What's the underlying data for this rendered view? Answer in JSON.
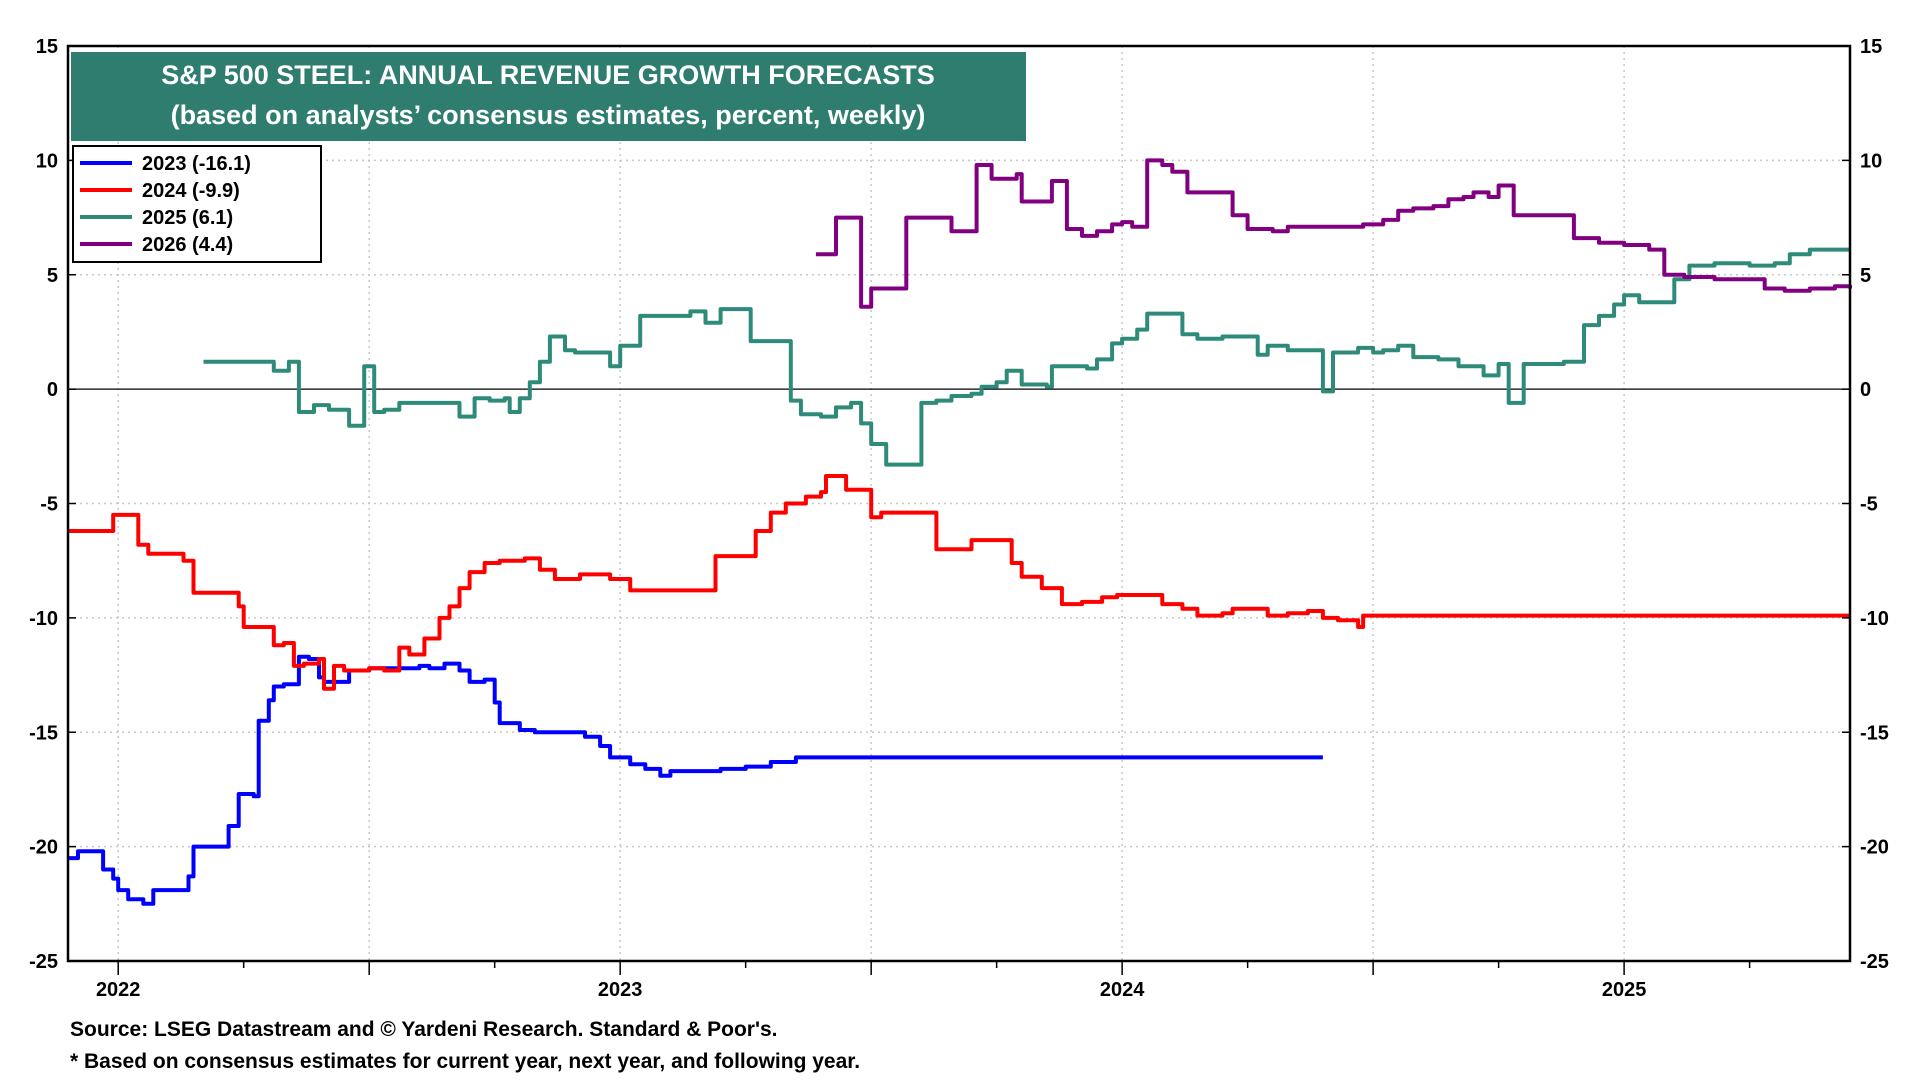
{
  "chart_data": {
    "type": "line",
    "title": "S&P 500 STEEL: ANNUAL REVENUE GROWTH FORECASTS",
    "subtitle": "(based on analysts’ consensus estimates, percent, weekly)",
    "xlabel": "",
    "ylabel": "",
    "ylim": [
      -25,
      15
    ],
    "xlim": [
      2021.9,
      2025.45
    ],
    "y_ticks": [
      15,
      10,
      5,
      0,
      -5,
      -10,
      -15,
      -20,
      -25
    ],
    "x_tick_labels": [
      {
        "label": "2022",
        "x": 2022.0
      },
      {
        "label": "2023",
        "x": 2023.0
      },
      {
        "label": "2024",
        "x": 2024.0
      },
      {
        "label": "2025",
        "x": 2025.0
      }
    ],
    "grid": true,
    "legend_position": "top-left",
    "series": [
      {
        "name": "2023 (-16.1)",
        "color": "#0000ff",
        "points": [
          [
            2021.9,
            -20.5
          ],
          [
            2021.92,
            -20.2
          ],
          [
            2021.96,
            -20.2
          ],
          [
            2021.97,
            -21.0
          ],
          [
            2021.99,
            -21.4
          ],
          [
            2022.0,
            -21.9
          ],
          [
            2022.02,
            -22.3
          ],
          [
            2022.05,
            -22.5
          ],
          [
            2022.07,
            -21.9
          ],
          [
            2022.12,
            -21.9
          ],
          [
            2022.14,
            -21.3
          ],
          [
            2022.15,
            -20.0
          ],
          [
            2022.2,
            -20.0
          ],
          [
            2022.22,
            -19.1
          ],
          [
            2022.24,
            -17.7
          ],
          [
            2022.27,
            -17.8
          ],
          [
            2022.28,
            -14.5
          ],
          [
            2022.3,
            -13.6
          ],
          [
            2022.31,
            -13.0
          ],
          [
            2022.33,
            -12.9
          ],
          [
            2022.35,
            -12.9
          ],
          [
            2022.36,
            -11.7
          ],
          [
            2022.38,
            -11.8
          ],
          [
            2022.4,
            -12.6
          ],
          [
            2022.41,
            -12.8
          ],
          [
            2022.45,
            -12.8
          ],
          [
            2022.46,
            -12.3
          ],
          [
            2022.5,
            -12.2
          ],
          [
            2022.6,
            -12.1
          ],
          [
            2022.62,
            -12.2
          ],
          [
            2022.65,
            -12.0
          ],
          [
            2022.68,
            -12.3
          ],
          [
            2022.7,
            -12.8
          ],
          [
            2022.73,
            -12.7
          ],
          [
            2022.75,
            -13.7
          ],
          [
            2022.76,
            -14.6
          ],
          [
            2022.8,
            -14.9
          ],
          [
            2022.83,
            -15.0
          ],
          [
            2022.93,
            -15.2
          ],
          [
            2022.96,
            -15.6
          ],
          [
            2022.98,
            -16.1
          ],
          [
            2023.02,
            -16.4
          ],
          [
            2023.05,
            -16.6
          ],
          [
            2023.08,
            -16.9
          ],
          [
            2023.1,
            -16.7
          ],
          [
            2023.17,
            -16.7
          ],
          [
            2023.2,
            -16.6
          ],
          [
            2023.25,
            -16.5
          ],
          [
            2023.3,
            -16.3
          ],
          [
            2023.35,
            -16.1
          ],
          [
            2024.4,
            -16.1
          ]
        ]
      },
      {
        "name": "2024 (-9.9)",
        "color": "#ff0000",
        "points": [
          [
            2021.9,
            -6.2
          ],
          [
            2021.97,
            -6.2
          ],
          [
            2021.99,
            -5.5
          ],
          [
            2022.03,
            -5.5
          ],
          [
            2022.04,
            -6.8
          ],
          [
            2022.06,
            -7.2
          ],
          [
            2022.11,
            -7.2
          ],
          [
            2022.13,
            -7.5
          ],
          [
            2022.15,
            -8.9
          ],
          [
            2022.22,
            -8.9
          ],
          [
            2022.24,
            -9.5
          ],
          [
            2022.25,
            -10.4
          ],
          [
            2022.3,
            -10.4
          ],
          [
            2022.31,
            -11.2
          ],
          [
            2022.33,
            -11.1
          ],
          [
            2022.35,
            -12.1
          ],
          [
            2022.37,
            -12.0
          ],
          [
            2022.4,
            -11.8
          ],
          [
            2022.41,
            -13.1
          ],
          [
            2022.43,
            -12.1
          ],
          [
            2022.45,
            -12.3
          ],
          [
            2022.5,
            -12.2
          ],
          [
            2022.53,
            -12.3
          ],
          [
            2022.56,
            -11.3
          ],
          [
            2022.58,
            -11.6
          ],
          [
            2022.61,
            -10.9
          ],
          [
            2022.64,
            -10.0
          ],
          [
            2022.66,
            -9.5
          ],
          [
            2022.68,
            -8.7
          ],
          [
            2022.7,
            -8.0
          ],
          [
            2022.73,
            -7.6
          ],
          [
            2022.76,
            -7.5
          ],
          [
            2022.81,
            -7.4
          ],
          [
            2022.84,
            -7.9
          ],
          [
            2022.87,
            -8.3
          ],
          [
            2022.92,
            -8.1
          ],
          [
            2022.95,
            -8.1
          ],
          [
            2022.98,
            -8.3
          ],
          [
            2023.02,
            -8.8
          ],
          [
            2023.07,
            -8.8
          ],
          [
            2023.17,
            -8.8
          ],
          [
            2023.19,
            -7.3
          ],
          [
            2023.25,
            -7.3
          ],
          [
            2023.27,
            -6.2
          ],
          [
            2023.3,
            -5.4
          ],
          [
            2023.33,
            -5.0
          ],
          [
            2023.37,
            -4.7
          ],
          [
            2023.4,
            -4.5
          ],
          [
            2023.41,
            -3.8
          ],
          [
            2023.45,
            -4.4
          ],
          [
            2023.48,
            -4.4
          ],
          [
            2023.5,
            -5.6
          ],
          [
            2023.52,
            -5.4
          ],
          [
            2023.61,
            -5.4
          ],
          [
            2023.63,
            -7.0
          ],
          [
            2023.68,
            -7.0
          ],
          [
            2023.7,
            -6.6
          ],
          [
            2023.76,
            -6.6
          ],
          [
            2023.78,
            -7.6
          ],
          [
            2023.8,
            -8.2
          ],
          [
            2023.84,
            -8.7
          ],
          [
            2023.88,
            -9.4
          ],
          [
            2023.92,
            -9.3
          ],
          [
            2023.96,
            -9.1
          ],
          [
            2023.99,
            -9.0
          ],
          [
            2024.05,
            -9.0
          ],
          [
            2024.08,
            -9.4
          ],
          [
            2024.12,
            -9.6
          ],
          [
            2024.15,
            -9.9
          ],
          [
            2024.2,
            -9.8
          ],
          [
            2024.22,
            -9.6
          ],
          [
            2024.27,
            -9.6
          ],
          [
            2024.29,
            -9.9
          ],
          [
            2024.33,
            -9.8
          ],
          [
            2024.37,
            -9.7
          ],
          [
            2024.4,
            -10.0
          ],
          [
            2024.43,
            -10.1
          ],
          [
            2024.47,
            -10.4
          ],
          [
            2024.48,
            -9.9
          ],
          [
            2025.45,
            -9.9
          ]
        ]
      },
      {
        "name": "2025 (6.1)",
        "color": "#2e8b7a",
        "points": [
          [
            2022.17,
            1.2
          ],
          [
            2022.3,
            1.2
          ],
          [
            2022.31,
            0.8
          ],
          [
            2022.34,
            1.2
          ],
          [
            2022.36,
            -1.0
          ],
          [
            2022.39,
            -0.7
          ],
          [
            2022.42,
            -0.9
          ],
          [
            2022.46,
            -1.6
          ],
          [
            2022.49,
            1.0
          ],
          [
            2022.51,
            -1.0
          ],
          [
            2022.53,
            -0.9
          ],
          [
            2022.56,
            -0.6
          ],
          [
            2022.6,
            -0.6
          ],
          [
            2022.66,
            -0.6
          ],
          [
            2022.68,
            -1.2
          ],
          [
            2022.71,
            -0.4
          ],
          [
            2022.74,
            -0.5
          ],
          [
            2022.77,
            -0.4
          ],
          [
            2022.78,
            -1.0
          ],
          [
            2022.8,
            -0.4
          ],
          [
            2022.82,
            0.3
          ],
          [
            2022.84,
            1.2
          ],
          [
            2022.86,
            2.3
          ],
          [
            2022.89,
            1.7
          ],
          [
            2022.91,
            1.6
          ],
          [
            2022.96,
            1.6
          ],
          [
            2022.98,
            1.0
          ],
          [
            2023.0,
            1.9
          ],
          [
            2023.04,
            3.2
          ],
          [
            2023.1,
            3.2
          ],
          [
            2023.14,
            3.4
          ],
          [
            2023.17,
            2.9
          ],
          [
            2023.2,
            3.5
          ],
          [
            2023.24,
            3.5
          ],
          [
            2023.26,
            2.1
          ],
          [
            2023.32,
            2.1
          ],
          [
            2023.34,
            -0.5
          ],
          [
            2023.36,
            -1.1
          ],
          [
            2023.4,
            -1.2
          ],
          [
            2023.43,
            -0.8
          ],
          [
            2023.46,
            -0.6
          ],
          [
            2023.48,
            -1.5
          ],
          [
            2023.5,
            -2.4
          ],
          [
            2023.53,
            -3.3
          ],
          [
            2023.58,
            -3.3
          ],
          [
            2023.6,
            -0.6
          ],
          [
            2023.63,
            -0.5
          ],
          [
            2023.66,
            -0.3
          ],
          [
            2023.7,
            -0.2
          ],
          [
            2023.72,
            0.1
          ],
          [
            2023.75,
            0.3
          ],
          [
            2023.77,
            0.8
          ],
          [
            2023.8,
            0.2
          ],
          [
            2023.85,
            0.1
          ],
          [
            2023.86,
            1.0
          ],
          [
            2023.9,
            1.0
          ],
          [
            2023.93,
            0.9
          ],
          [
            2023.95,
            1.3
          ],
          [
            2023.98,
            2.0
          ],
          [
            2024.0,
            2.2
          ],
          [
            2024.03,
            2.6
          ],
          [
            2024.05,
            3.3
          ],
          [
            2024.09,
            3.3
          ],
          [
            2024.12,
            2.4
          ],
          [
            2024.15,
            2.2
          ],
          [
            2024.2,
            2.3
          ],
          [
            2024.25,
            2.3
          ],
          [
            2024.27,
            1.5
          ],
          [
            2024.29,
            1.9
          ],
          [
            2024.33,
            1.7
          ],
          [
            2024.38,
            1.7
          ],
          [
            2024.4,
            -0.1
          ],
          [
            2024.42,
            1.6
          ],
          [
            2024.45,
            1.6
          ],
          [
            2024.47,
            1.8
          ],
          [
            2024.5,
            1.6
          ],
          [
            2024.52,
            1.7
          ],
          [
            2024.55,
            1.9
          ],
          [
            2024.58,
            1.4
          ],
          [
            2024.63,
            1.3
          ],
          [
            2024.67,
            1.0
          ],
          [
            2024.7,
            1.0
          ],
          [
            2024.72,
            0.6
          ],
          [
            2024.75,
            1.1
          ],
          [
            2024.77,
            -0.6
          ],
          [
            2024.8,
            1.1
          ],
          [
            2024.85,
            1.1
          ],
          [
            2024.88,
            1.2
          ],
          [
            2024.92,
            2.8
          ],
          [
            2024.95,
            3.2
          ],
          [
            2024.98,
            3.7
          ],
          [
            2025.0,
            4.1
          ],
          [
            2025.03,
            3.8
          ],
          [
            2025.08,
            3.8
          ],
          [
            2025.1,
            4.8
          ],
          [
            2025.13,
            5.4
          ],
          [
            2025.18,
            5.5
          ],
          [
            2025.22,
            5.5
          ],
          [
            2025.25,
            5.4
          ],
          [
            2025.3,
            5.5
          ],
          [
            2025.33,
            5.9
          ],
          [
            2025.37,
            6.1
          ],
          [
            2025.45,
            6.1
          ]
        ]
      },
      {
        "name": "2026 (4.4)",
        "color": "#800080",
        "points": [
          [
            2023.39,
            5.9
          ],
          [
            2023.42,
            5.9
          ],
          [
            2023.43,
            7.5
          ],
          [
            2023.46,
            7.5
          ],
          [
            2023.48,
            3.6
          ],
          [
            2023.5,
            4.4
          ],
          [
            2023.56,
            4.4
          ],
          [
            2023.57,
            7.5
          ],
          [
            2023.64,
            7.5
          ],
          [
            2023.66,
            6.9
          ],
          [
            2023.7,
            6.9
          ],
          [
            2023.71,
            9.8
          ],
          [
            2023.74,
            9.2
          ],
          [
            2023.79,
            9.4
          ],
          [
            2023.8,
            8.2
          ],
          [
            2023.84,
            8.2
          ],
          [
            2023.86,
            9.1
          ],
          [
            2023.89,
            7.0
          ],
          [
            2023.92,
            6.7
          ],
          [
            2023.95,
            6.9
          ],
          [
            2023.98,
            7.2
          ],
          [
            2024.0,
            7.3
          ],
          [
            2024.02,
            7.1
          ],
          [
            2024.05,
            10.0
          ],
          [
            2024.08,
            9.8
          ],
          [
            2024.1,
            9.5
          ],
          [
            2024.13,
            8.6
          ],
          [
            2024.2,
            8.6
          ],
          [
            2024.22,
            7.6
          ],
          [
            2024.25,
            7.0
          ],
          [
            2024.3,
            6.9
          ],
          [
            2024.33,
            7.1
          ],
          [
            2024.38,
            7.1
          ],
          [
            2024.42,
            7.1
          ],
          [
            2024.48,
            7.2
          ],
          [
            2024.52,
            7.4
          ],
          [
            2024.55,
            7.8
          ],
          [
            2024.58,
            7.9
          ],
          [
            2024.62,
            8.0
          ],
          [
            2024.65,
            8.3
          ],
          [
            2024.68,
            8.4
          ],
          [
            2024.7,
            8.6
          ],
          [
            2024.73,
            8.4
          ],
          [
            2024.75,
            8.9
          ],
          [
            2024.78,
            7.6
          ],
          [
            2024.85,
            7.6
          ],
          [
            2024.9,
            6.6
          ],
          [
            2024.95,
            6.4
          ],
          [
            2025.0,
            6.3
          ],
          [
            2025.05,
            6.1
          ],
          [
            2025.08,
            5.0
          ],
          [
            2025.12,
            4.9
          ],
          [
            2025.18,
            4.8
          ],
          [
            2025.24,
            4.8
          ],
          [
            2025.28,
            4.4
          ],
          [
            2025.32,
            4.3
          ],
          [
            2025.37,
            4.4
          ],
          [
            2025.42,
            4.5
          ],
          [
            2025.45,
            4.4
          ]
        ]
      }
    ]
  },
  "footnotes": {
    "source": "Source: LSEG Datastream and © Yardeni Research. Standard & Poor's.",
    "note": "* Based on consensus estimates for current year, next year, and following year."
  }
}
